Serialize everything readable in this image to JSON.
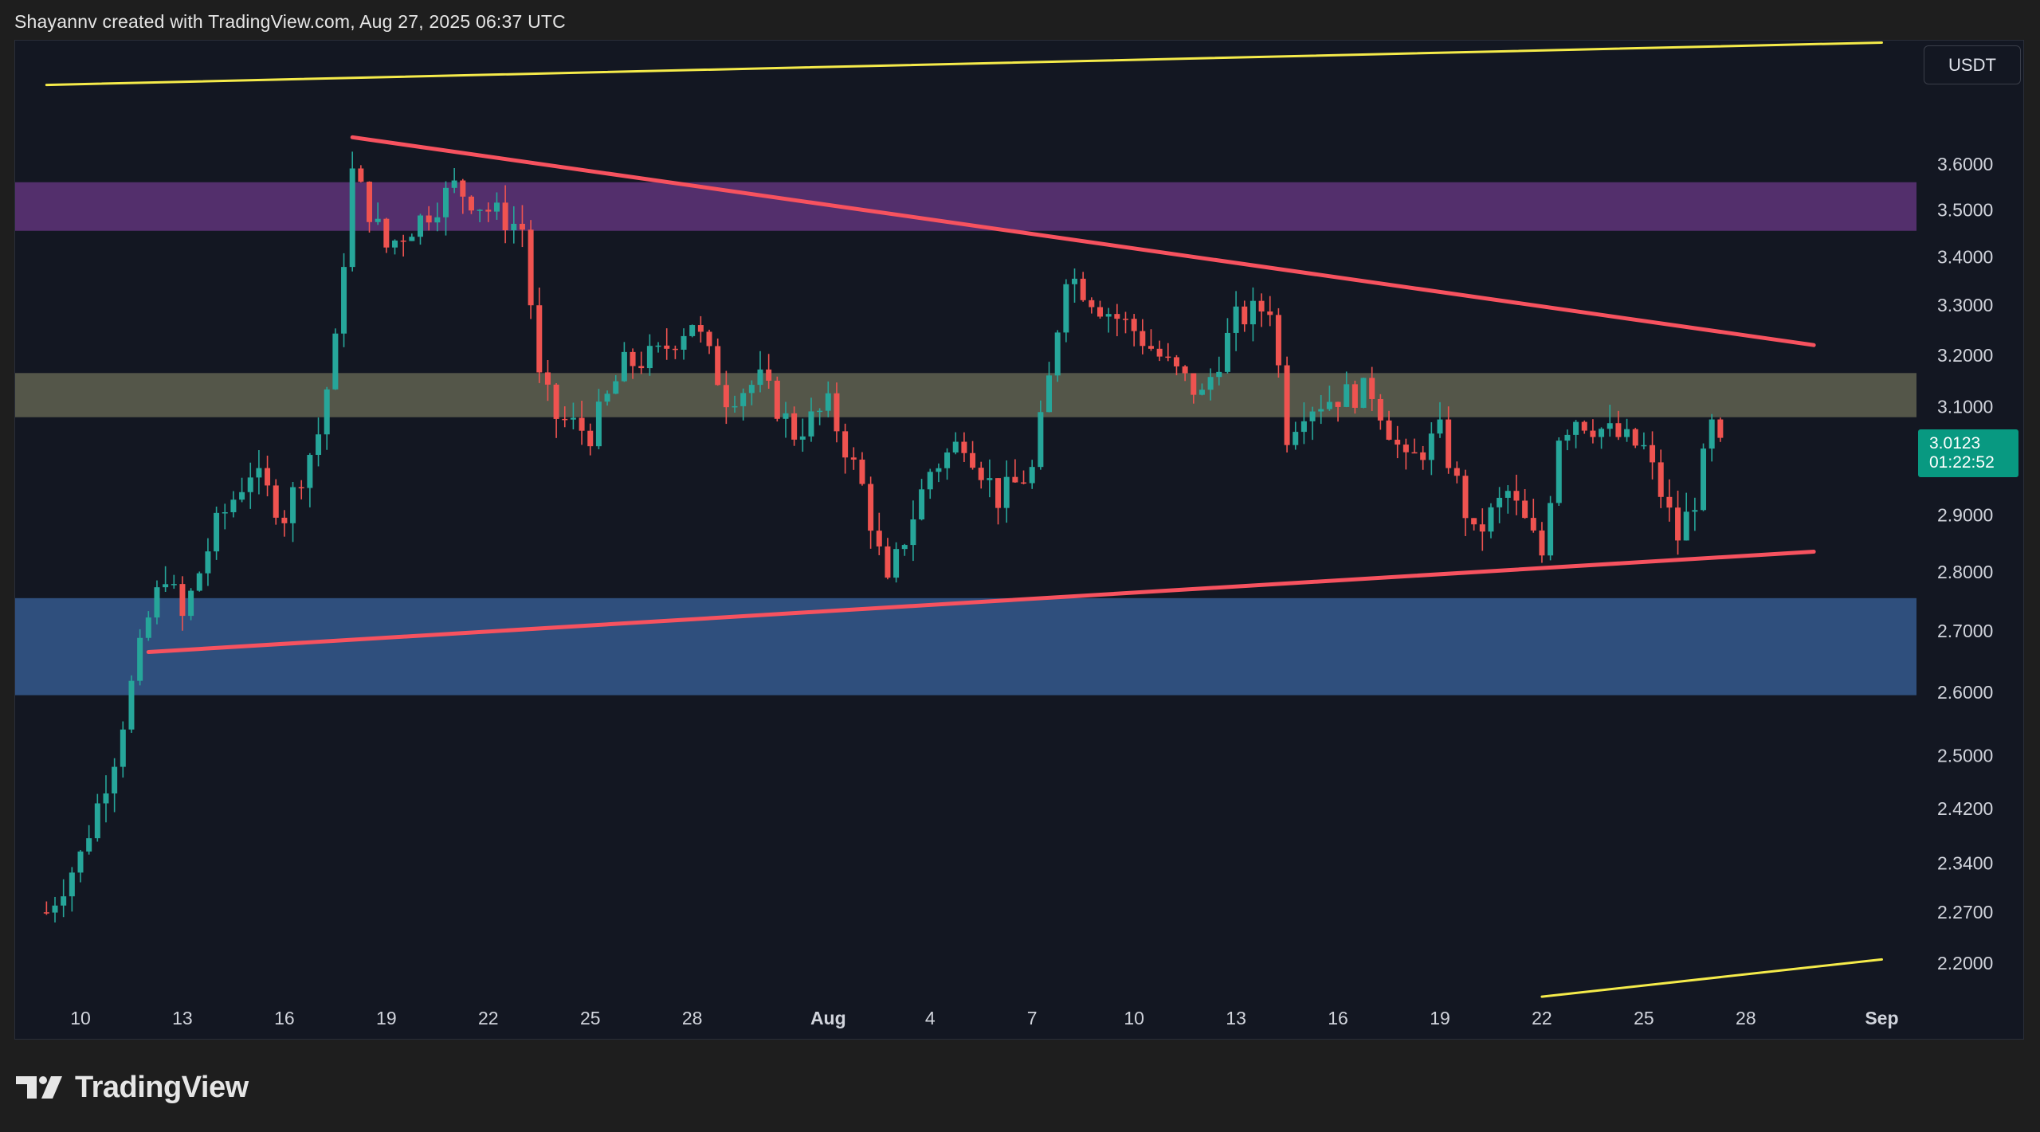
{
  "header": {
    "credit": "Shayannv created with TradingView.com, Aug 27, 2025 06:37 UTC"
  },
  "footer": {
    "brand": "TradingView",
    "logo_icon": "tradingview-logo-icon"
  },
  "price_scale": {
    "currency": "USDT",
    "ticks": [
      "3.6000",
      "3.5000",
      "3.4000",
      "3.3000",
      "3.2000",
      "3.1000",
      "2.9000",
      "2.8000",
      "2.7000",
      "2.6000",
      "2.5000",
      "2.4200",
      "2.3400",
      "2.2700",
      "2.2000"
    ]
  },
  "last_price": {
    "value": "3.0123",
    "countdown": "01:22:52",
    "color": "#089981"
  },
  "colors": {
    "background": "#131722",
    "up_candle": "#26a69a",
    "down_candle": "#ef5350",
    "triangle_lines": "#f7525f",
    "channel_lines": "#f5eb4a",
    "zone_resistance": "#7b3f99",
    "zone_pivot": "#8a8a6a",
    "zone_support": "#3d6aa8"
  },
  "chart_data": {
    "type": "candlestick",
    "symbol_quote": "USDT",
    "x_labels": [
      "10",
      "13",
      "16",
      "19",
      "22",
      "25",
      "28",
      "Aug",
      "4",
      "7",
      "10",
      "13",
      "16",
      "19",
      "22",
      "25",
      "28",
      "Sep"
    ],
    "y_scale": "log",
    "ylim": [
      2.14,
      3.9
    ],
    "y_ticks": [
      3.6,
      3.5,
      3.4,
      3.3,
      3.2,
      3.1,
      2.9,
      2.8,
      2.7,
      2.6,
      2.5,
      2.42,
      2.34,
      2.27,
      2.2
    ],
    "last_price": 3.0123,
    "zones": [
      {
        "name": "resistance",
        "from": 3.455,
        "to": 3.56
      },
      {
        "name": "pivot",
        "from": 3.08,
        "to": 3.165
      },
      {
        "name": "support",
        "from": 2.595,
        "to": 2.755
      }
    ],
    "trendlines": [
      {
        "name": "triangle-upper",
        "points": [
          [
            "Jul 18",
            3.66
          ],
          [
            "Aug 30",
            3.22
          ]
        ]
      },
      {
        "name": "triangle-lower",
        "points": [
          [
            "Jul 12",
            2.665
          ],
          [
            "Aug 30",
            2.835
          ]
        ]
      },
      {
        "name": "channel-upper",
        "points": [
          [
            "Jul 9",
            3.78
          ],
          [
            "Sep 1",
            3.88
          ]
        ]
      },
      {
        "name": "channel-lower",
        "points": [
          [
            "Aug 22",
            2.155
          ],
          [
            "Sep 1",
            2.205
          ]
        ]
      }
    ],
    "price_path": [
      [
        "Jul 9",
        2.27
      ],
      [
        "Jul 10",
        2.35
      ],
      [
        "Jul 11",
        2.5
      ],
      [
        "Jul 12",
        2.72
      ],
      [
        "Jul 12.5",
        2.8
      ],
      [
        "Jul 13",
        2.72
      ],
      [
        "Jul 14",
        2.88
      ],
      [
        "Jul 15",
        2.98
      ],
      [
        "Jul 16",
        2.9
      ],
      [
        "Jul 17",
        3.05
      ],
      [
        "Jul 17.5",
        3.22
      ],
      [
        "Jul 18",
        3.58
      ],
      [
        "Jul 19",
        3.42
      ],
      [
        "Jul 20",
        3.48
      ],
      [
        "Jul 21",
        3.55
      ],
      [
        "Jul 22",
        3.5
      ],
      [
        "Jul 23",
        3.46
      ],
      [
        "Jul 23.5",
        3.15
      ],
      [
        "Jul 24",
        3.08
      ],
      [
        "Jul 25",
        3.05
      ],
      [
        "Jul 26",
        3.18
      ],
      [
        "Jul 27",
        3.2
      ],
      [
        "Jul 28",
        3.27
      ],
      [
        "Jul 29",
        3.12
      ],
      [
        "Jul 30",
        3.15
      ],
      [
        "Jul 31",
        3.05
      ],
      [
        "Aug 1",
        3.1
      ],
      [
        "Aug 2",
        2.95
      ],
      [
        "Aug 2.8",
        2.76
      ],
      [
        "Aug 3",
        2.82
      ],
      [
        "Aug 4",
        2.98
      ],
      [
        "Aug 5",
        3.04
      ],
      [
        "Aug 6",
        2.93
      ],
      [
        "Aug 7",
        2.98
      ],
      [
        "Aug 7.5",
        3.15
      ],
      [
        "Aug 8",
        3.37
      ],
      [
        "Aug 9",
        3.3
      ],
      [
        "Aug 10",
        3.25
      ],
      [
        "Aug 11",
        3.18
      ],
      [
        "Aug 12",
        3.12
      ],
      [
        "Aug 13",
        3.27
      ],
      [
        "Aug 14",
        3.3
      ],
      [
        "Aug 14.5",
        3.05
      ],
      [
        "Aug 15",
        3.1
      ],
      [
        "Aug 16",
        3.12
      ],
      [
        "Aug 17",
        3.13
      ],
      [
        "Aug 18",
        2.99
      ],
      [
        "Aug 19",
        3.05
      ],
      [
        "Aug 20",
        2.86
      ],
      [
        "Aug 21",
        2.94
      ],
      [
        "Aug 22",
        2.83
      ],
      [
        "Aug 22.5",
        3.05
      ],
      [
        "Aug 23",
        3.08
      ],
      [
        "Aug 24",
        3.05
      ],
      [
        "Aug 25",
        3.02
      ],
      [
        "Aug 26",
        2.86
      ],
      [
        "Aug 26.5",
        2.93
      ],
      [
        "Aug 27",
        3.06
      ],
      [
        "Aug 27.3",
        3.01
      ]
    ]
  }
}
